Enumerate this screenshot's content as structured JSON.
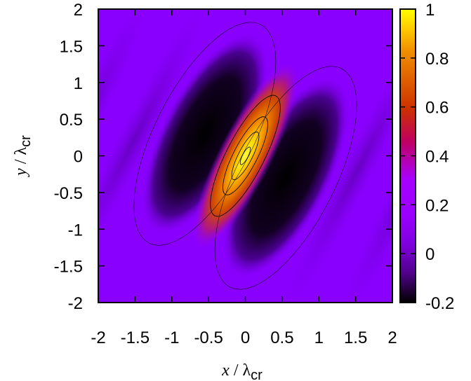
{
  "chart_data": {
    "type": "heatmap",
    "title": "",
    "x_range": [
      -2,
      2
    ],
    "y_range": [
      -2,
      2
    ],
    "x_ticks": [
      "-2",
      "-1.5",
      "-1",
      "-0.5",
      "0",
      "0.5",
      "1",
      "1.5",
      "2"
    ],
    "y_ticks": [
      "2",
      "1.5",
      "1",
      "0.5",
      "0",
      "-0.5",
      "-1",
      "-1.5",
      "-2"
    ],
    "xlabel": {
      "main": "x",
      "slash": " / ",
      "lambda": "λ",
      "sub": "cr"
    },
    "ylabel": {
      "main": "y",
      "slash": " / ",
      "lambda": "λ",
      "sub": "cr"
    },
    "colorbar": {
      "range": [
        -0.2,
        1
      ],
      "ticks": [
        "1",
        "0.8",
        "0.6",
        "0.4",
        "0.2",
        "0",
        "-0.2"
      ],
      "palette": [
        "#000000",
        "#7a00c8",
        "#8a00ff",
        "#aa00ff",
        "#c0006a",
        "#c83000",
        "#e06000",
        "#f09000",
        "#ffd000",
        "#ffff00"
      ]
    },
    "features": [
      {
        "kind": "peak",
        "x": 0.0,
        "y": 0.0,
        "value": 1.0,
        "orientation_deg": -63
      },
      {
        "kind": "trough",
        "x": -0.55,
        "y": 0.3,
        "value": -0.2
      },
      {
        "kind": "trough",
        "x": 0.55,
        "y": -0.3,
        "value": -0.2
      },
      {
        "kind": "background",
        "value": 0.05
      }
    ],
    "grid": false,
    "contours": true
  }
}
